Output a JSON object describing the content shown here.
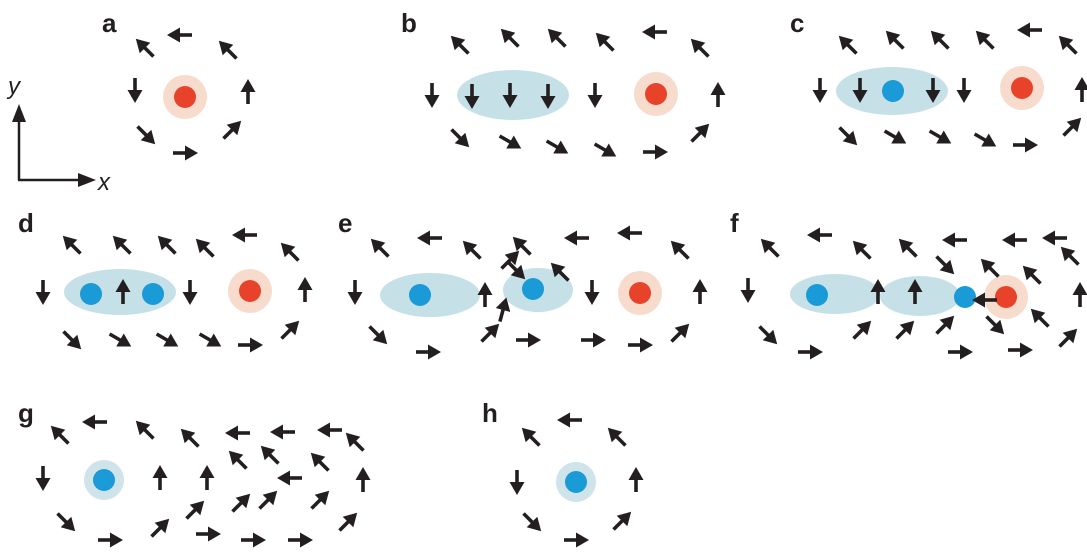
{
  "figure": {
    "panels": [
      {
        "label": "a"
      },
      {
        "label": "b"
      },
      {
        "label": "c"
      },
      {
        "label": "d"
      },
      {
        "label": "e"
      },
      {
        "label": "f"
      },
      {
        "label": "g"
      },
      {
        "label": "h"
      }
    ],
    "axes": {
      "x_label": "x",
      "y_label": "y"
    },
    "colors": {
      "arrow": "#231f20",
      "red_dot": "#e8432a",
      "red_halo": "#f7dccd",
      "blue_dot": "#1a9ad6",
      "blue_halo": "#cfe3ea",
      "ellipse": "#bcdbe4"
    }
  }
}
